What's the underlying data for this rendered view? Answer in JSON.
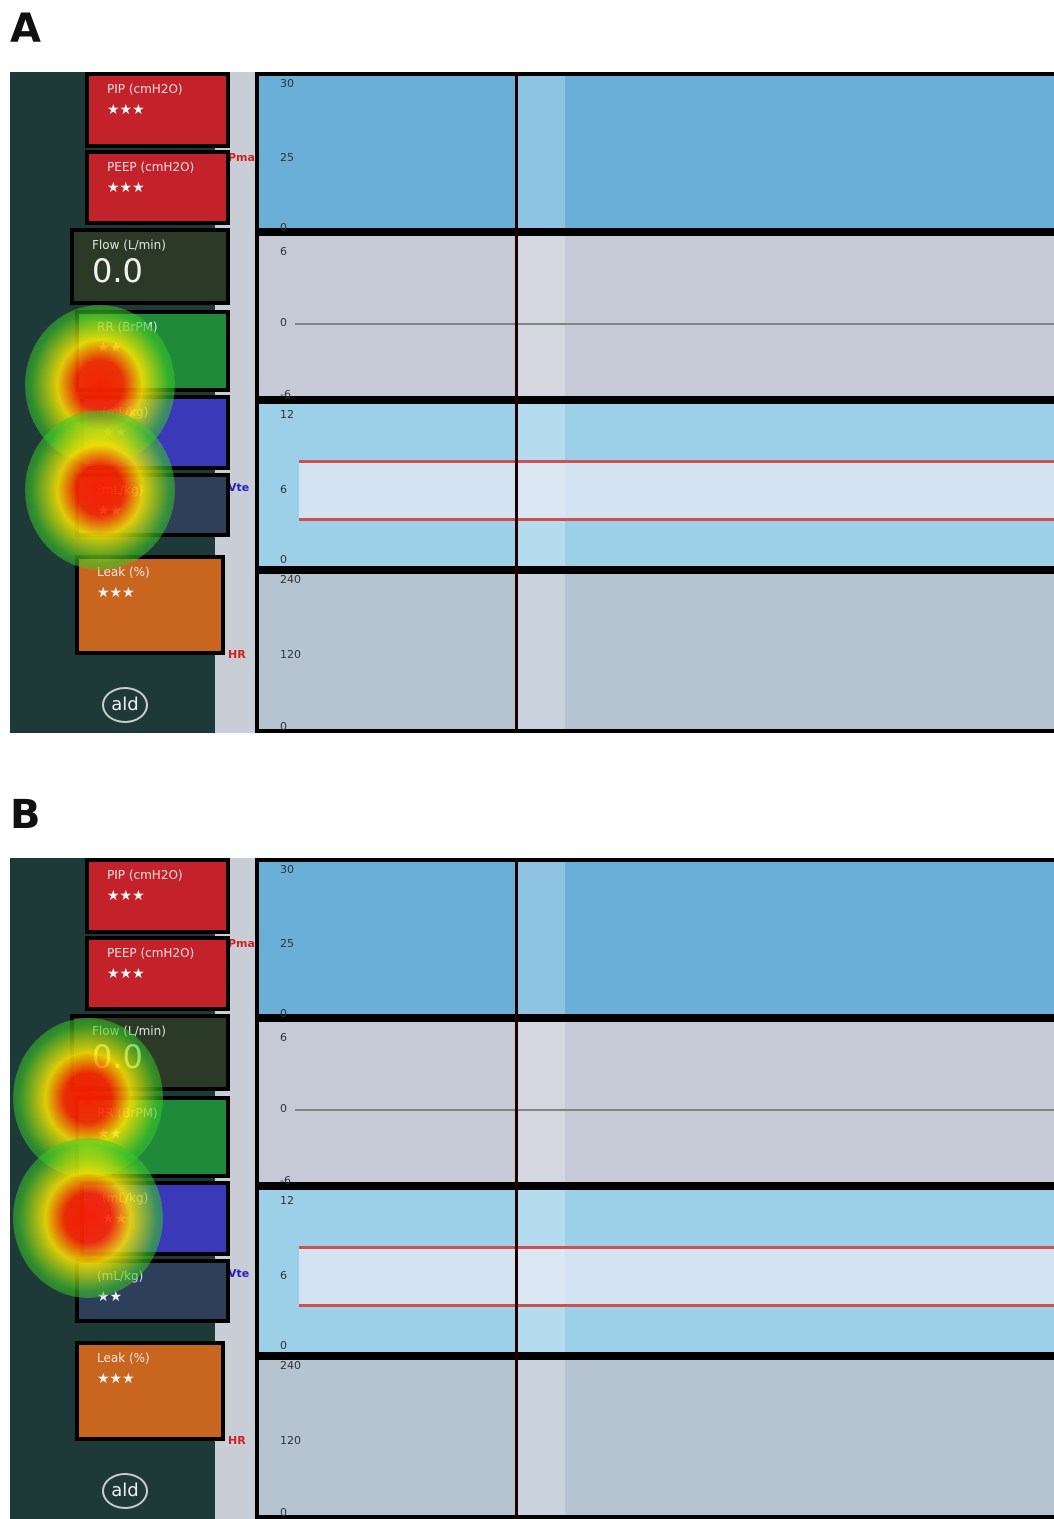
{
  "panels": [
    {
      "label": "A",
      "tiles": [
        {
          "title": "PIP (cmH2O)",
          "value": "★★★"
        },
        {
          "title": "PEEP (cmH2O)",
          "value": "★★★"
        },
        {
          "title": "Flow (L/min)",
          "value": "0.0"
        },
        {
          "title": "RR (BrPM)",
          "value": "★★"
        },
        {
          "title": "(mL/kg)",
          "value": "★★"
        },
        {
          "title": "(mL/kg)",
          "value": "★★"
        },
        {
          "title": "Leak (%)",
          "value": "★★★"
        }
      ],
      "side_labels": [
        "Pma",
        "Vte",
        "HR"
      ],
      "axis_labels": [
        "30",
        "25",
        "0",
        "6",
        "0",
        "-6",
        "12",
        "6",
        "0",
        "240",
        "120",
        "0"
      ],
      "badge": "ald"
    },
    {
      "label": "B",
      "tiles": [
        {
          "title": "PIP (cmH2O)",
          "value": "★★★"
        },
        {
          "title": "PEEP (cmH2O)",
          "value": "★★★"
        },
        {
          "title": "Flow (L/min)",
          "value": "0.0"
        },
        {
          "title": "RR (BrPM)",
          "value": "★★"
        },
        {
          "title": "(mL/kg)",
          "value": "★★"
        },
        {
          "title": "(mL/kg)",
          "value": "★★"
        },
        {
          "title": "Leak (%)",
          "value": "★★★"
        }
      ],
      "side_labels": [
        "Pma",
        "Vte",
        "HR"
      ],
      "axis_labels": [
        "30",
        "25",
        "0",
        "6",
        "0",
        "-6",
        "12",
        "6",
        "0",
        "240",
        "120",
        "0"
      ],
      "badge": "ald"
    }
  ]
}
